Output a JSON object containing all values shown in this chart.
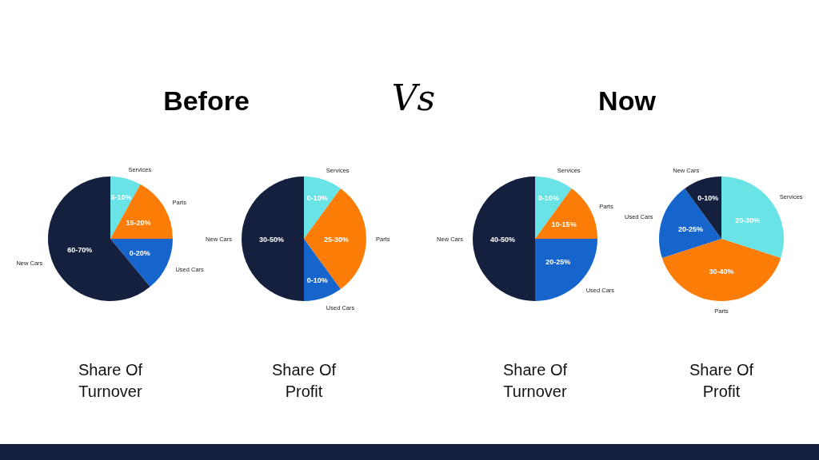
{
  "chart_data": [
    {
      "type": "pie",
      "title": "Share Of Turnover",
      "categories": [
        "Services",
        "Parts",
        "Used Cars",
        "New Cars"
      ],
      "values": [
        8,
        17,
        14,
        61
      ],
      "colors": [
        "#6ae3e6",
        "#fb7d07",
        "#1565cc",
        "#15203f"
      ],
      "annotations": [
        "Before",
        {
          "text": "5-10%",
          "x": "Services"
        },
        {
          "text": "15-20%",
          "x": "Parts"
        },
        {
          "text": "0-20%",
          "x": "Used Cars"
        },
        {
          "text": "60-70%",
          "x": "New Cars"
        }
      ]
    },
    {
      "type": "pie",
      "title": "Share Of Profit",
      "categories": [
        "Services",
        "Parts",
        "Used Cars",
        "New Cars"
      ],
      "values": [
        10,
        30,
        10,
        50
      ],
      "colors": [
        "#6ae3e6",
        "#fb7d07",
        "#1565cc",
        "#15203f"
      ],
      "annotations": [
        "Vs",
        {
          "text": "0-10%",
          "x": "Services"
        },
        {
          "text": "25-30%",
          "x": "Parts"
        },
        {
          "text": "0-10%",
          "x": "Used Cars"
        },
        {
          "text": "30-50%",
          "x": "New Cars"
        }
      ]
    },
    {
      "type": "pie",
      "title": "Share Of Turnover",
      "categories": [
        "Services",
        "Parts",
        "Used Cars",
        "New Cars"
      ],
      "values": [
        10,
        15,
        25,
        50
      ],
      "colors": [
        "#6ae3e6",
        "#fb7d07",
        "#1565cc",
        "#15203f"
      ],
      "annotations": [
        "Now",
        {
          "text": "0-10%",
          "x": "Services"
        },
        {
          "text": "10-15%",
          "x": "Parts"
        },
        {
          "text": "20-25%",
          "x": "Used Cars"
        },
        {
          "text": "40-50%",
          "x": "New Cars"
        }
      ]
    },
    {
      "type": "pie",
      "title": "Share Of Profit",
      "categories": [
        "Services",
        "Parts",
        "Used Cars",
        "New Cars"
      ],
      "values": [
        30,
        40,
        20,
        10
      ],
      "colors": [
        "#6ae3e6",
        "#fb7d07",
        "#1565cc",
        "#15203f"
      ],
      "annotations": [
        {
          "text": "20-30%",
          "x": "Services"
        },
        {
          "text": "30-40%",
          "x": "Parts"
        },
        {
          "text": "20-25%",
          "x": "Used Cars"
        },
        {
          "text": "0-10%",
          "x": "New Cars"
        }
      ]
    }
  ]
}
